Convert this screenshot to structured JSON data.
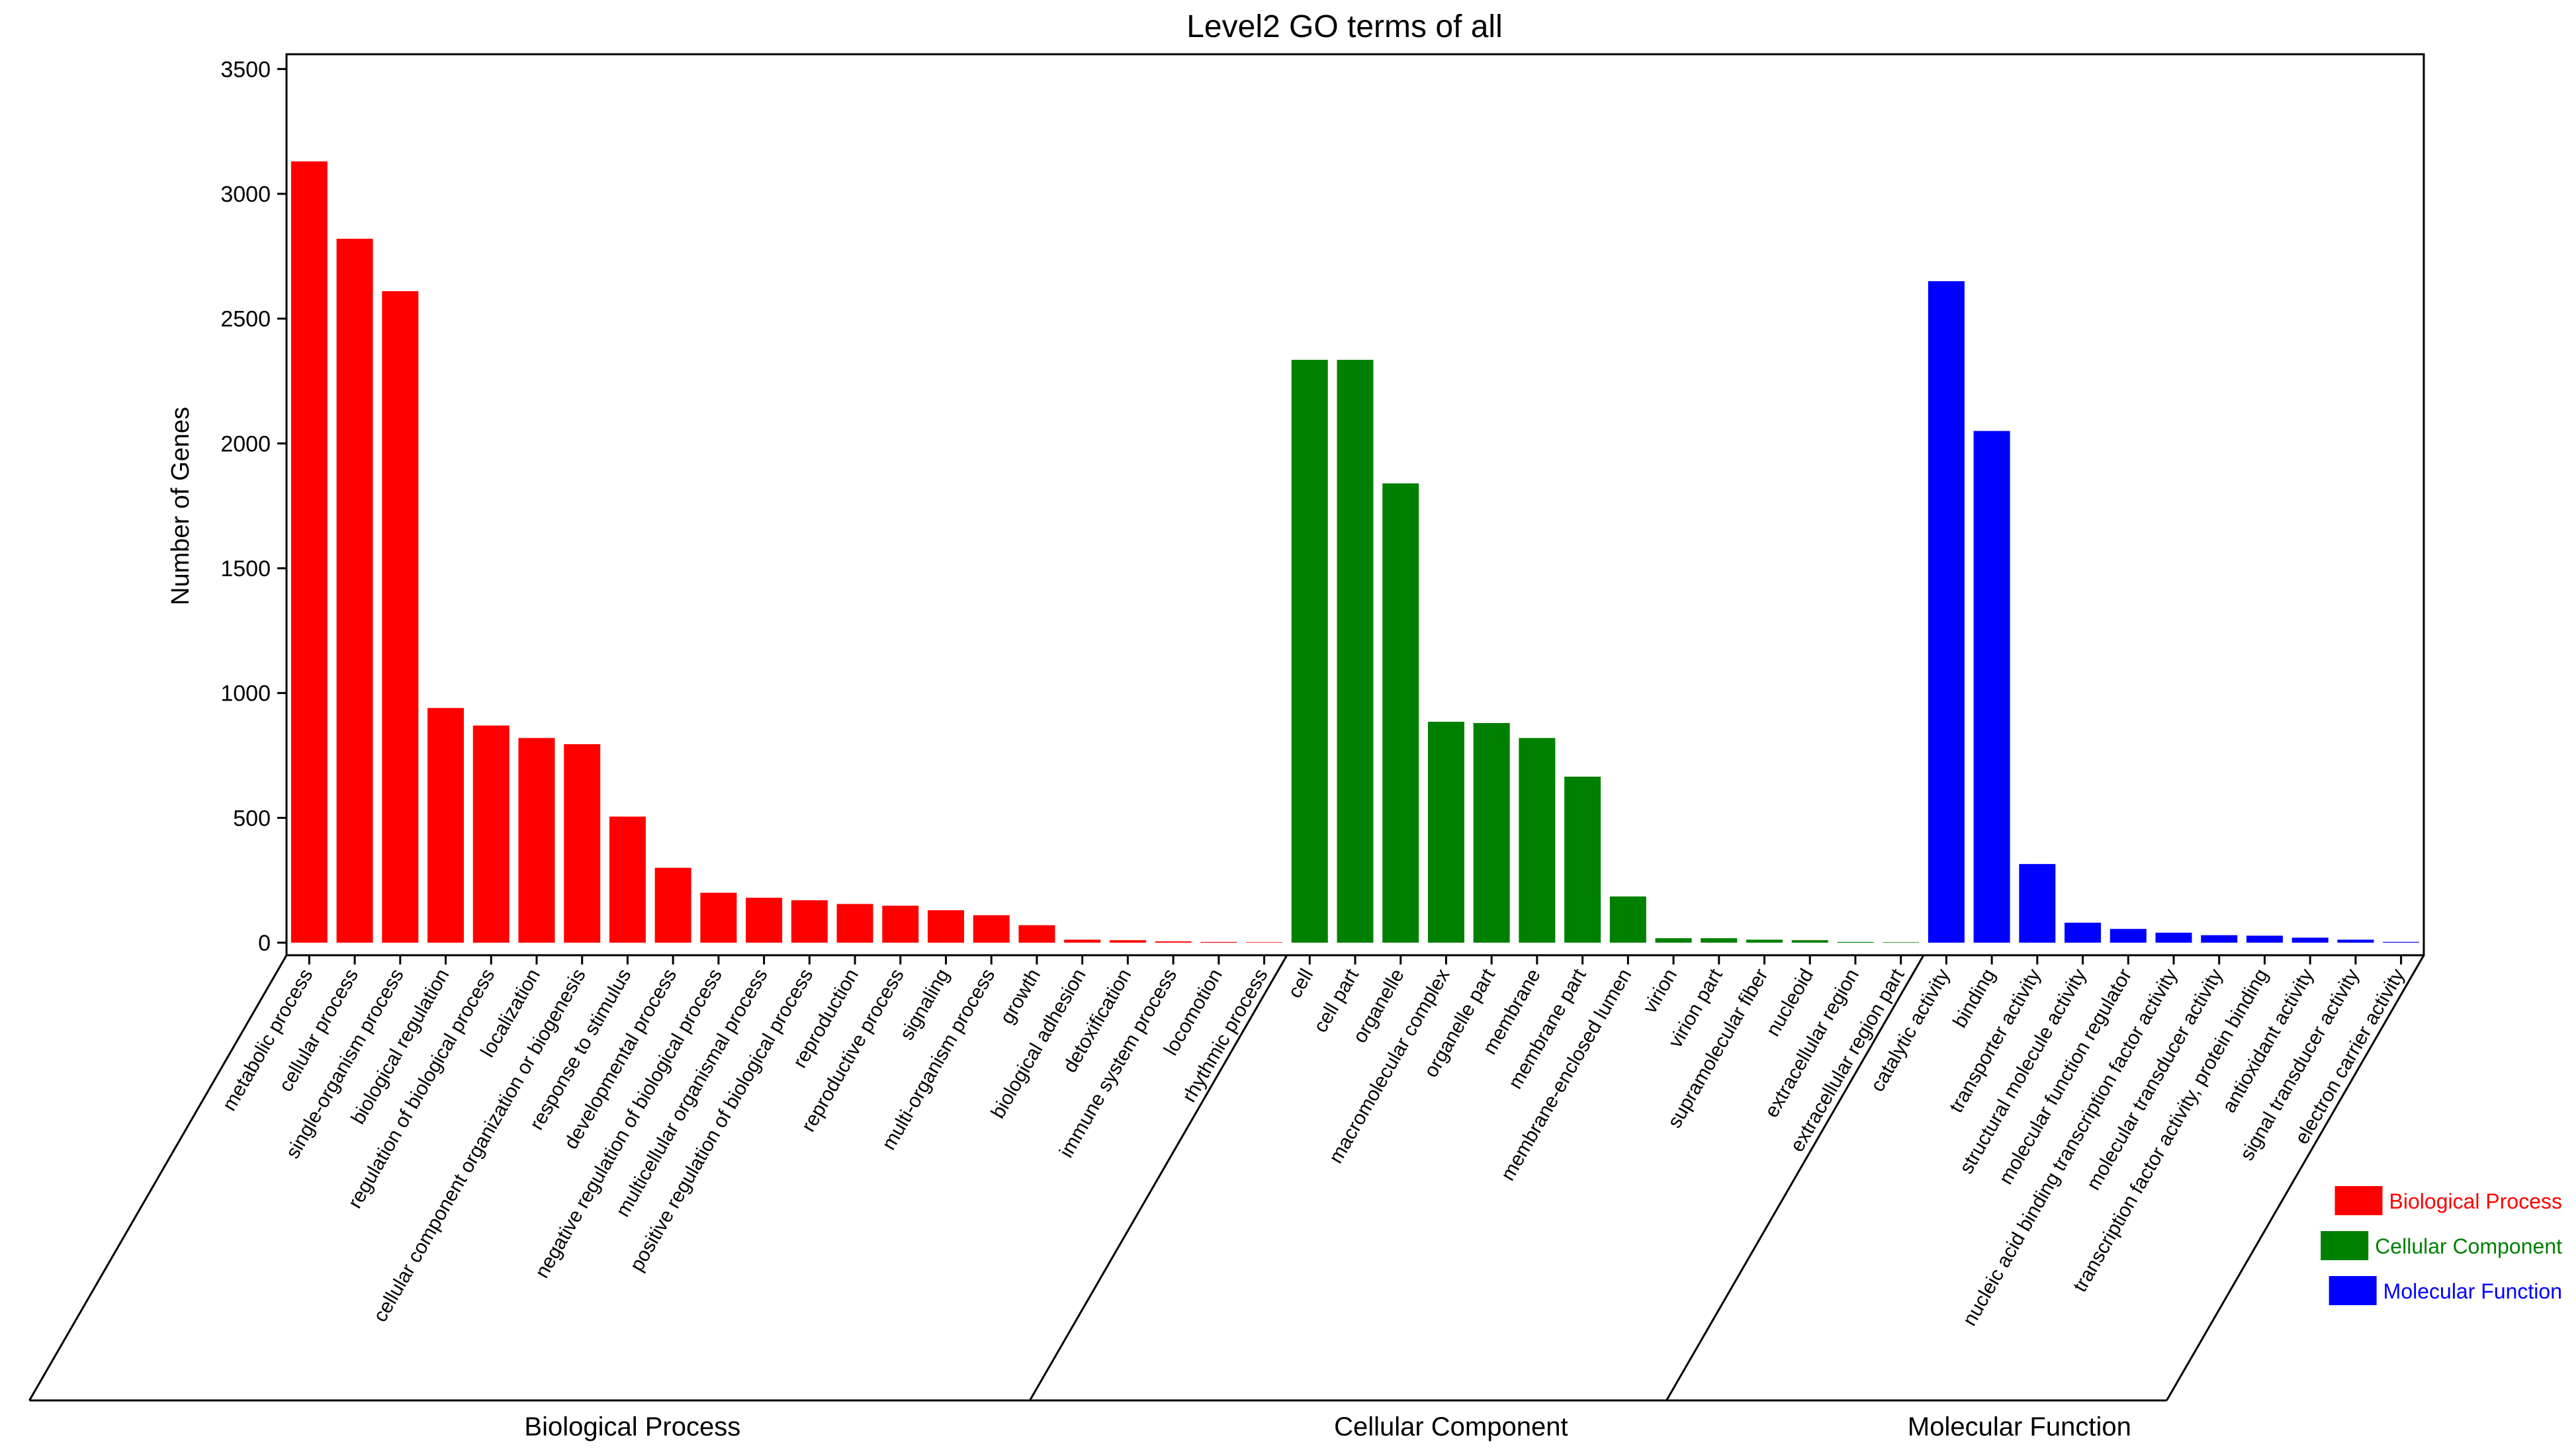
{
  "colors": {
    "biological_process": "#ff0000",
    "cellular_component": "#008000",
    "molecular_function": "#0000ff"
  },
  "chart_data": {
    "type": "bar",
    "title": "Level2 GO terms of all",
    "ylabel": "Number of Genes",
    "xlabel": "",
    "ylim": [
      0,
      3550
    ],
    "yticks": [
      0,
      500,
      1000,
      1500,
      2000,
      2500,
      3000,
      3500
    ],
    "grid": false,
    "legend_position": "bottom-right",
    "groups": [
      {
        "name": "Biological Process",
        "legend": "Biological Process",
        "color": "#ff0000",
        "categories": [
          "metabolic process",
          "cellular process",
          "single-organism process",
          "biological regulation",
          "regulation of biological process",
          "localization",
          "cellular component organization or biogenesis",
          "response to stimulus",
          "developmental process",
          "negative regulation of biological process",
          "multicellular organismal process",
          "positive regulation of biological process",
          "reproduction",
          "reproductive process",
          "signaling",
          "multi-organism process",
          "growth",
          "biological adhesion",
          "detoxification",
          "immune system process",
          "locomotion",
          "rhythmic process"
        ],
        "values": [
          3130,
          2820,
          2610,
          940,
          870,
          820,
          795,
          505,
          300,
          200,
          180,
          170,
          155,
          148,
          130,
          110,
          70,
          12,
          10,
          5,
          3,
          2
        ]
      },
      {
        "name": "Cellular Component",
        "legend": "Cellular Component",
        "color": "#008000",
        "categories": [
          "cell",
          "cell part",
          "organelle",
          "macromolecular complex",
          "organelle part",
          "membrane",
          "membrane part",
          "membrane-enclosed lumen",
          "virion",
          "virion part",
          "supramolecular fiber",
          "nucleoid",
          "extracellular region",
          "extracellular region part"
        ],
        "values": [
          2335,
          2335,
          1840,
          885,
          880,
          820,
          665,
          185,
          18,
          18,
          12,
          10,
          3,
          2
        ]
      },
      {
        "name": "Molecular Function",
        "legend": "Molecular Function",
        "color": "#0000ff",
        "categories": [
          "catalytic activity",
          "binding",
          "transporter activity",
          "structural molecule activity",
          "molecular function regulator",
          "nucleic acid binding transcription factor activity",
          "molecular transducer activity",
          "transcription factor activity, protein binding",
          "antioxidant activity",
          "signal transducer activity",
          "electron carrier activity"
        ],
        "values": [
          2650,
          2050,
          315,
          80,
          55,
          40,
          30,
          28,
          20,
          12,
          3
        ]
      }
    ]
  }
}
